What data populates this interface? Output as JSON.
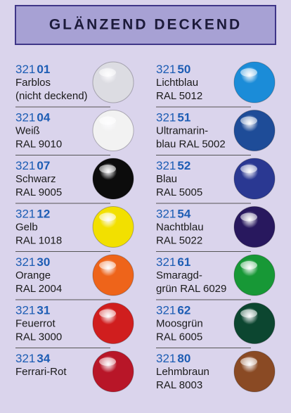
{
  "header": {
    "title": "GLÄNZEND DECKEND"
  },
  "columns": [
    {
      "items": [
        {
          "code_prefix": "321",
          "code_suffix": "01",
          "lines": [
            "Farblos",
            "(nicht deckend)"
          ],
          "color": "#dcdce2"
        },
        {
          "code_prefix": "321",
          "code_suffix": "04",
          "lines": [
            "Weiß",
            "RAL 9010"
          ],
          "color": "#f2f2f2"
        },
        {
          "code_prefix": "321",
          "code_suffix": "07",
          "lines": [
            "Schwarz",
            "RAL 9005"
          ],
          "color": "#0c0c0c"
        },
        {
          "code_prefix": "321",
          "code_suffix": "12",
          "lines": [
            "Gelb",
            "RAL 1018"
          ],
          "color": "#f2e000"
        },
        {
          "code_prefix": "321",
          "code_suffix": "30",
          "lines": [
            "Orange",
            "RAL 2004"
          ],
          "color": "#ee641a"
        },
        {
          "code_prefix": "321",
          "code_suffix": "31",
          "lines": [
            "Feuerrot",
            "RAL 3000"
          ],
          "color": "#d01e1e"
        },
        {
          "code_prefix": "321",
          "code_suffix": "34",
          "lines": [
            "Ferrari-Rot"
          ],
          "color": "#b81628"
        }
      ]
    },
    {
      "items": [
        {
          "code_prefix": "321",
          "code_suffix": "50",
          "lines": [
            "Lichtblau",
            "RAL 5012"
          ],
          "color": "#1b8cd8"
        },
        {
          "code_prefix": "321",
          "code_suffix": "51",
          "lines": [
            "Ultramarin-",
            "blau RAL 5002"
          ],
          "color": "#1e4c98"
        },
        {
          "code_prefix": "321",
          "code_suffix": "52",
          "lines": [
            "Blau",
            "RAL 5005"
          ],
          "color": "#2a3892"
        },
        {
          "code_prefix": "321",
          "code_suffix": "54",
          "lines": [
            "Nachtblau",
            "RAL 5022"
          ],
          "color": "#28185e"
        },
        {
          "code_prefix": "321",
          "code_suffix": "61",
          "lines": [
            "Smaragd-",
            "grün RAL 6029"
          ],
          "color": "#179836"
        },
        {
          "code_prefix": "321",
          "code_suffix": "62",
          "lines": [
            "Moosgrün",
            "RAL 6005"
          ],
          "color": "#0c4630"
        },
        {
          "code_prefix": "321",
          "code_suffix": "80",
          "lines": [
            "Lehmbraun",
            "RAL 8003"
          ],
          "color": "#8a4a24"
        }
      ]
    }
  ]
}
